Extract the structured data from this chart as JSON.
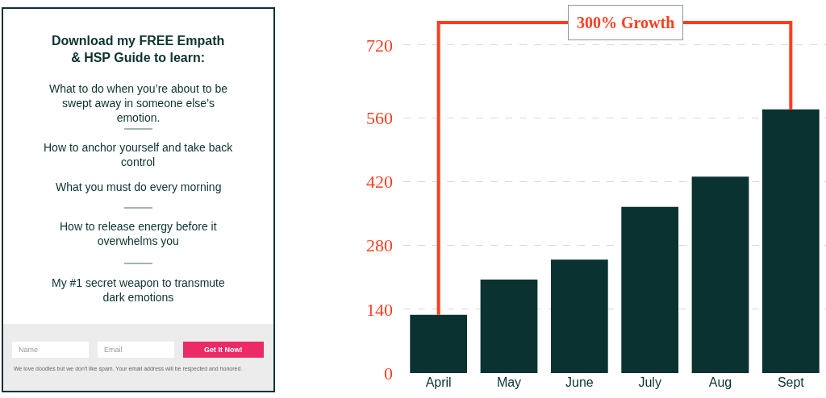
{
  "chart_data": [
    {
      "type": "other",
      "title": "Download my FREE Empath & HSP Guide to learn:",
      "annotations": [
        "What to do when you’re about to be swept away in someone else’s emotion.",
        "How to anchor yourself and take back control",
        "What you must do every morning",
        "How to release energy before it overwhelms you",
        "My #1 secret weapon to transmute dark emotions",
        "Name",
        "Email",
        "Get It Now!",
        "We love doodles but we don't like spam. Your email address will be respected and honored."
      ]
    },
    {
      "type": "bar",
      "categories": [
        "April",
        "May",
        "June",
        "July",
        "Aug",
        "Sept"
      ],
      "series": [
        {
          "type": "bar",
          "color": "#0a3230",
          "values": [
            128,
            205,
            249,
            365,
            431,
            579
          ]
        }
      ],
      "annotations": [
        "300% Growth"
      ],
      "ylim": [
        0,
        819
      ],
      "yticks": [
        0,
        140,
        280,
        420,
        560,
        720
      ],
      "grid": "y"
    }
  ]
}
